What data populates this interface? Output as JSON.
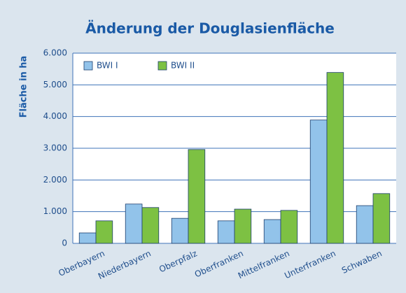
{
  "chart_data": {
    "type": "bar",
    "title": "Änderung der Douglasienfläche",
    "y_label": "Fläche in ha",
    "categories": [
      "Oberbayern",
      "Niederbayern",
      "Oberpfalz",
      "Oberfranken",
      "Mittelfranken",
      "Unterfranken",
      "Schwaben"
    ],
    "series": [
      {
        "name": "BWI I",
        "color": "#92c3ea",
        "values": [
          330,
          1240,
          790,
          710,
          750,
          3890,
          1190
        ]
      },
      {
        "name": "BWI II",
        "color": "#7dc143",
        "values": [
          710,
          1130,
          2960,
          1080,
          1040,
          5390,
          1570
        ]
      }
    ],
    "ylim": [
      0,
      6000
    ],
    "yticks": [
      {
        "value": 0,
        "label": "0"
      },
      {
        "value": 1000,
        "label": "1.000"
      },
      {
        "value": 2000,
        "label": "2.000"
      },
      {
        "value": 3000,
        "label": "3.000"
      },
      {
        "value": 4000,
        "label": "4.000"
      },
      {
        "value": 5000,
        "label": "5.000"
      },
      {
        "value": 6000,
        "label": "6.000"
      }
    ],
    "grid": true,
    "legend": "top-left"
  }
}
